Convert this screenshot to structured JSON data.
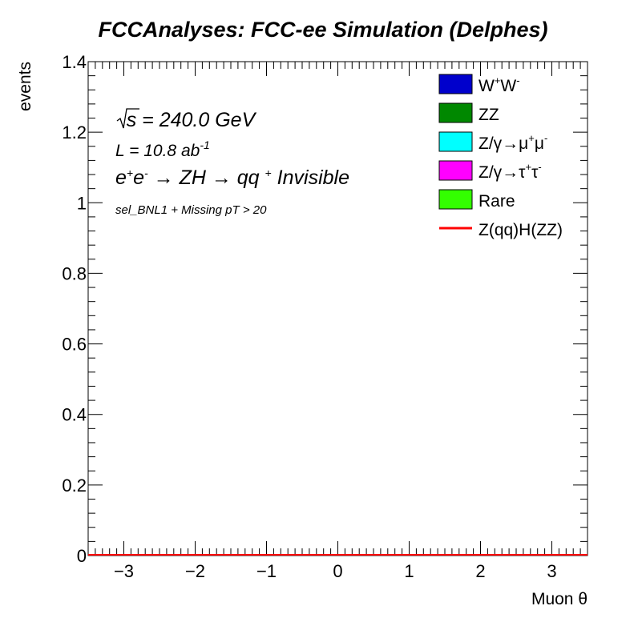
{
  "chart_data": {
    "type": "bar",
    "title": "FCCAnalyses: FCC-ee Simulation (Delphes)",
    "xlabel": "Muon θ",
    "ylabel": "events",
    "xlim": [
      -3.5,
      3.5
    ],
    "ylim": [
      0,
      1.4
    ],
    "x_ticks": [
      -3,
      -2,
      -1,
      0,
      1,
      2,
      3
    ],
    "x_tick_labels": [
      "−3",
      "−2",
      "−1",
      "0",
      "1",
      "2",
      "3"
    ],
    "y_ticks": [
      0,
      0.2,
      0.4,
      0.6,
      0.8,
      1,
      1.2,
      1.4
    ],
    "y_tick_labels": [
      "0",
      "0.2",
      "0.4",
      "0.6",
      "0.8",
      "1",
      "1.2",
      "1.4"
    ],
    "grid": false,
    "legend_position": "top-right",
    "annotations": {
      "energy": "√s = 240.0 GeV",
      "lumi": "L = 10.8 ab",
      "lumi_exp": "-1",
      "process": "e+e- → ZH → qq + Invisible",
      "selection": "sel_BNL1 + Missing pT > 20"
    },
    "series": [
      {
        "name": "W+W-",
        "kind": "fill",
        "color": "#0000cc",
        "values": []
      },
      {
        "name": "ZZ",
        "kind": "fill",
        "color": "#008800",
        "values": []
      },
      {
        "name": "Z/γ→μ+μ-",
        "kind": "fill",
        "color": "#00ffff",
        "values": []
      },
      {
        "name": "Z/γ→τ+τ-",
        "kind": "fill",
        "color": "#ff00ff",
        "values": []
      },
      {
        "name": "Rare",
        "kind": "fill",
        "color": "#33ff00",
        "values": []
      },
      {
        "name": "Z(qq)H(ZZ)",
        "kind": "line",
        "color": "#ff0000",
        "values": [
          0,
          0
        ]
      }
    ]
  }
}
